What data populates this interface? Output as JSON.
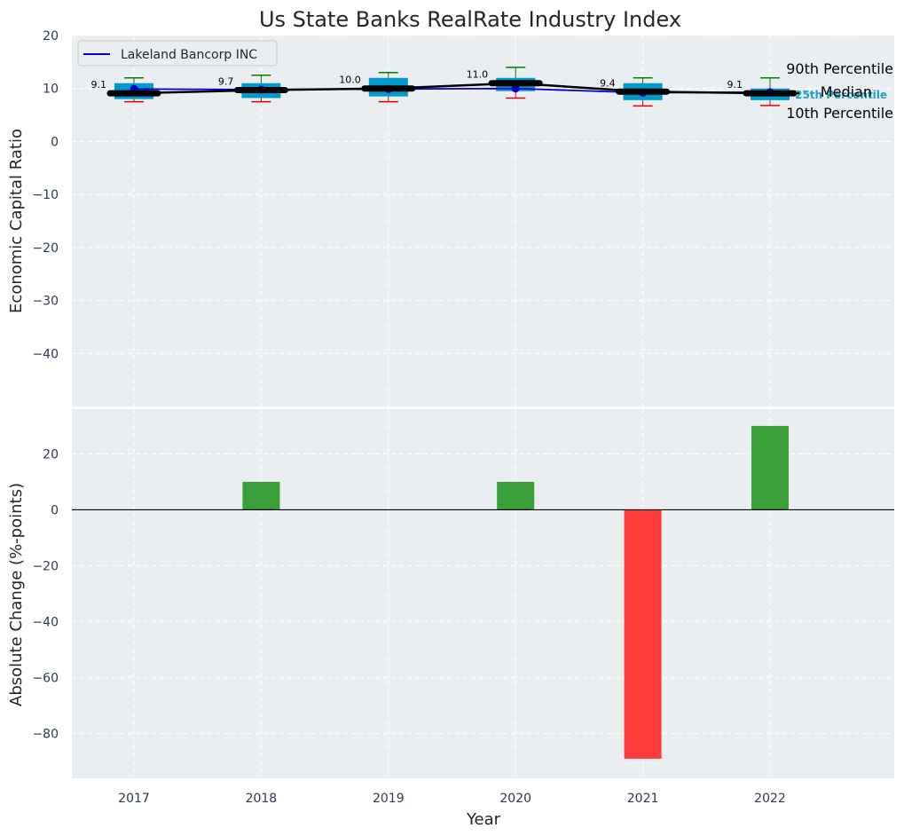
{
  "chart_data": [
    {
      "type": "box",
      "title": "Us State Banks RealRate Industry Index",
      "ylabel": "Economic Capital Ratio",
      "ylim": [
        -50,
        20
      ],
      "yticks": [
        20,
        10,
        0,
        -10,
        -20,
        -30,
        -40
      ],
      "categories": [
        "2017",
        "2018",
        "2019",
        "2020",
        "2021",
        "2022"
      ],
      "boxes": [
        {
          "p10": 7.5,
          "q1": 8.0,
          "median": 9.1,
          "q3": 11.0,
          "p90": 12.0
        },
        {
          "p10": 7.5,
          "q1": 8.2,
          "median": 9.7,
          "q3": 11.0,
          "p90": 12.5
        },
        {
          "p10": 7.5,
          "q1": 8.5,
          "median": 10.0,
          "q3": 12.0,
          "p90": 13.0
        },
        {
          "p10": 8.2,
          "q1": 9.5,
          "median": 11.0,
          "q3": 12.0,
          "p90": 14.0
        },
        {
          "p10": 6.7,
          "q1": 7.8,
          "median": 9.4,
          "q3": 11.0,
          "p90": 12.0
        },
        {
          "p10": 6.8,
          "q1": 7.8,
          "median": 9.1,
          "q3": 10.0,
          "p90": 12.0
        }
      ],
      "median_labels": [
        "9.1",
        "9.7",
        "10.0",
        "11.0",
        "9.4",
        "9.1"
      ],
      "series": [
        {
          "name": "Lakeland Bancorp INC",
          "color": "#0000cc",
          "values": [
            9.9,
            9.8,
            9.9,
            10.0,
            9.2,
            9.3
          ]
        }
      ],
      "annotations": {
        "p90": "90th Percentile",
        "median": "Median",
        "q1": "25th Percentile",
        "p10": "10th Percentile"
      },
      "legend": "top-left",
      "grid": true
    },
    {
      "type": "bar",
      "ylabel": "Absolute Change (%-points)",
      "xlabel": "Year",
      "ylim": [
        -96,
        36
      ],
      "yticks": [
        20,
        0,
        -20,
        -40,
        -60,
        -80
      ],
      "categories": [
        "2017",
        "2018",
        "2019",
        "2020",
        "2021",
        "2022"
      ],
      "values": [
        0,
        10,
        0,
        10,
        -89,
        30
      ],
      "grid": true
    }
  ],
  "colors": {
    "background": "#eaeef0",
    "box_fill": "#0099cc",
    "upper_whisker": "#008000",
    "lower_whisker": "#dd0000",
    "positive_bar": "#3a9e3a",
    "negative_bar": "#ff3b3b",
    "median_line": "#000000",
    "q1_label": "#1aa0c8"
  }
}
